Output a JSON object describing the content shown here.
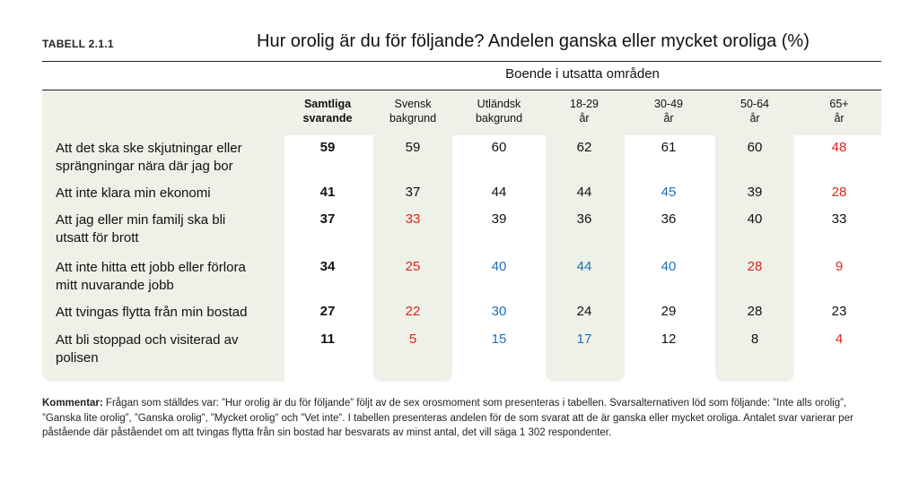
{
  "label": "TABELL 2.1.1",
  "title": "Hur orolig är du för följande? Andelen ganska eller mycket oroliga (%)",
  "group_header": "Boende i utsatta områden",
  "columns": [
    {
      "line1": "Samtliga",
      "line2": "svarande"
    },
    {
      "line1": "Svensk",
      "line2": "bakgrund"
    },
    {
      "line1": "Utländsk",
      "line2": "bakgrund"
    },
    {
      "line1": "18-29",
      "line2": "år"
    },
    {
      "line1": "30-49",
      "line2": "år"
    },
    {
      "line1": "50-64",
      "line2": "år"
    },
    {
      "line1": "65+",
      "line2": "år"
    }
  ],
  "rows": [
    {
      "line1": "Att det ska ske skjutningar eller",
      "line2": "sprängningar nära där jag bor",
      "values": [
        "59",
        "59",
        "60",
        "62",
        "61",
        "60",
        "48"
      ],
      "colors": [
        "bold",
        "black",
        "black",
        "black",
        "black",
        "black",
        "red"
      ]
    },
    {
      "line1": "Att inte klara min ekonomi",
      "line2": "",
      "values": [
        "41",
        "37",
        "44",
        "44",
        "45",
        "39",
        "28"
      ],
      "colors": [
        "bold",
        "black",
        "black",
        "black",
        "blue",
        "black",
        "red"
      ]
    },
    {
      "line1": "Att jag eller min familj ska bli",
      "line2": "utsatt för brott",
      "values": [
        "37",
        "33",
        "39",
        "36",
        "36",
        "40",
        "33"
      ],
      "colors": [
        "bold",
        "red",
        "black",
        "black",
        "black",
        "black",
        "black"
      ]
    },
    {
      "line1": "Att inte hitta ett jobb eller förlora",
      "line2": "mitt nuvarande jobb",
      "values": [
        "34",
        "25",
        "40",
        "44",
        "40",
        "28",
        "9"
      ],
      "colors": [
        "bold",
        "red",
        "blue",
        "blue",
        "blue",
        "red",
        "red"
      ]
    },
    {
      "line1": "Att tvingas flytta från min bostad",
      "line2": "",
      "values": [
        "27",
        "22",
        "30",
        "24",
        "29",
        "28",
        "23"
      ],
      "colors": [
        "bold",
        "red",
        "blue",
        "black",
        "black",
        "black",
        "black"
      ]
    },
    {
      "line1": "Att bli stoppad och visiterad av",
      "line2": "polisen",
      "values": [
        "11",
        "5",
        "15",
        "17",
        "12",
        "8",
        "4"
      ],
      "colors": [
        "bold",
        "red",
        "blue",
        "blue",
        "black",
        "black",
        "red"
      ]
    }
  ],
  "comment": {
    "lead": "Kommentar:",
    "text": " Frågan som ställdes var: ”Hur orolig är du för följande” följt av de sex orosmoment som presenteras i tabellen. Svarsalternativen löd som följande: ”Inte alls orolig”, ”Ganska lite orolig”, ”Ganska orolig”, ”Mycket orolig” och ”Vet inte”. I tabellen presenteras andelen för de som svarat att de är ganska eller mycket oroliga. Antalet svar varierar per påstående där påståendet om att tvingas flytta från sin bostad har besvarats av minst antal, det vill säga 1 302 respondenter."
  },
  "colors": {
    "red": "#e0231c",
    "blue": "#1f6fb8",
    "band": "#edf1e8"
  }
}
